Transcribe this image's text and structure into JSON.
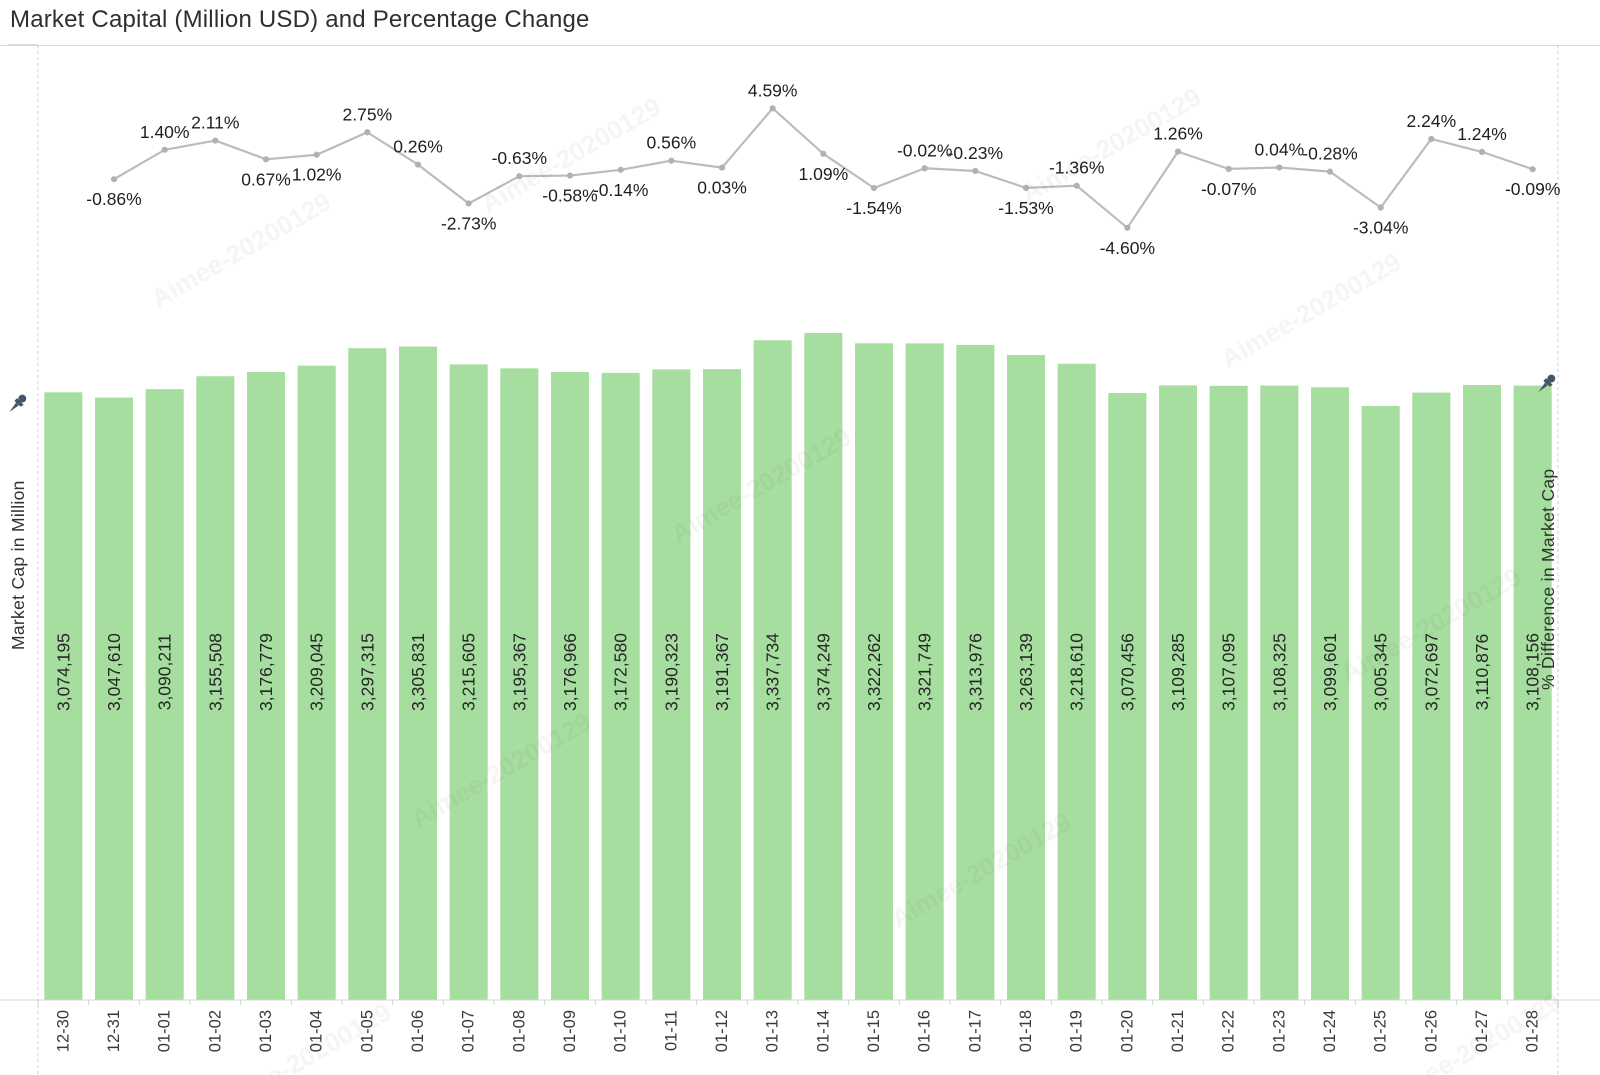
{
  "title": "Market Capital (Million USD) and Percentage Change",
  "axes": {
    "left_label": "Market Cap in Million",
    "right_label": "% Difference in Market Cap"
  },
  "watermark": {
    "text": "Aimee-20200129"
  },
  "icons": {
    "left_pin": "pin-icon",
    "right_pin": "pin-icon"
  },
  "chart_data": {
    "type": "combo",
    "categories": [
      "12-30",
      "12-31",
      "01-01",
      "01-02",
      "01-03",
      "01-04",
      "01-05",
      "01-06",
      "01-07",
      "01-08",
      "01-09",
      "01-10",
      "01-11",
      "01-12",
      "01-13",
      "01-14",
      "01-15",
      "01-16",
      "01-17",
      "01-18",
      "01-19",
      "01-20",
      "01-21",
      "01-22",
      "01-23",
      "01-24",
      "01-25",
      "01-26",
      "01-27",
      "01-28"
    ],
    "series": [
      {
        "name": "Market Cap in Million",
        "type": "bar",
        "color": "#a6de9f",
        "values": [
          3074195,
          3047610,
          3090211,
          3155508,
          3176779,
          3209045,
          3297315,
          3305831,
          3215605,
          3195367,
          3176966,
          3172580,
          3190323,
          3191367,
          3337734,
          3374249,
          3322262,
          3321749,
          3313976,
          3263139,
          3218610,
          3070456,
          3109285,
          3107095,
          3108325,
          3099601,
          3005345,
          3072697,
          3110876,
          3108156
        ]
      },
      {
        "name": "% Difference in Market Cap",
        "type": "line",
        "color": "#bcbcbc",
        "values": [
          null,
          -0.86,
          1.4,
          2.11,
          0.67,
          1.02,
          2.75,
          0.26,
          -2.73,
          -0.63,
          -0.58,
          -0.14,
          0.56,
          0.03,
          4.59,
          1.09,
          -1.54,
          -0.02,
          -0.23,
          -1.53,
          -1.36,
          -4.6,
          1.26,
          -0.07,
          0.04,
          -0.28,
          -3.04,
          2.24,
          1.24,
          -0.09
        ]
      }
    ],
    "pct_label_side": [
      null,
      "below",
      "above",
      "above",
      "below",
      "below",
      "above",
      "above",
      "below",
      "above",
      "below",
      "below",
      "above",
      "below",
      "above",
      "below",
      "below",
      "above",
      "above",
      "below",
      "above",
      "below",
      "above",
      "below",
      "above",
      "above",
      "below",
      "above",
      "above",
      "below"
    ],
    "bar_label_format": "thousands-comma",
    "pct_label_format": "two-decimals-percent",
    "bar_axis": {
      "min": 0,
      "visible": false
    },
    "pct_axis": {
      "visible": false
    },
    "grid": "off",
    "legend": "none"
  }
}
